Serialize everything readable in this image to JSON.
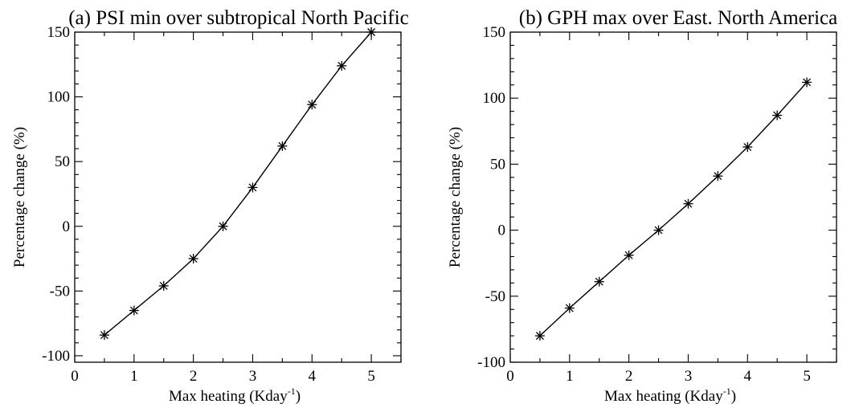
{
  "chart_data": [
    {
      "type": "line",
      "title": "(a) PSI min over subtropical North Pacific",
      "xlabel": "Max heating (Kday",
      "xlabel_sup": "-1",
      "xlabel_close": ")",
      "ylabel": "Percentage change (%)",
      "xlim": [
        0,
        5.5
      ],
      "ylim": [
        -105,
        150
      ],
      "xticks": [
        0,
        1,
        2,
        3,
        4,
        5
      ],
      "yticks": [
        -100,
        -50,
        0,
        50,
        100,
        150
      ],
      "marker": "asterisk",
      "series": [
        {
          "x": [
            0.5,
            1.0,
            1.5,
            2.0,
            2.5,
            3.0,
            3.5,
            4.0,
            4.5,
            5.0
          ],
          "y": [
            -84,
            -65,
            -46,
            -25,
            0,
            30,
            62,
            94,
            124,
            150
          ]
        }
      ]
    },
    {
      "type": "line",
      "title": "(b) GPH max over East. North America",
      "xlabel": "Max heating (Kday",
      "xlabel_sup": "-1",
      "xlabel_close": ")",
      "ylabel": "Percentage change (%)",
      "xlim": [
        0,
        5.5
      ],
      "ylim": [
        -100,
        150
      ],
      "xticks": [
        0,
        1,
        2,
        3,
        4,
        5
      ],
      "yticks": [
        -100,
        -50,
        0,
        50,
        100,
        150
      ],
      "marker": "asterisk",
      "series": [
        {
          "x": [
            0.5,
            1.0,
            1.5,
            2.0,
            2.5,
            3.0,
            3.5,
            4.0,
            4.5,
            5.0
          ],
          "y": [
            -80,
            -59,
            -39,
            -19,
            0,
            20,
            41,
            63,
            87,
            112
          ]
        }
      ]
    }
  ]
}
